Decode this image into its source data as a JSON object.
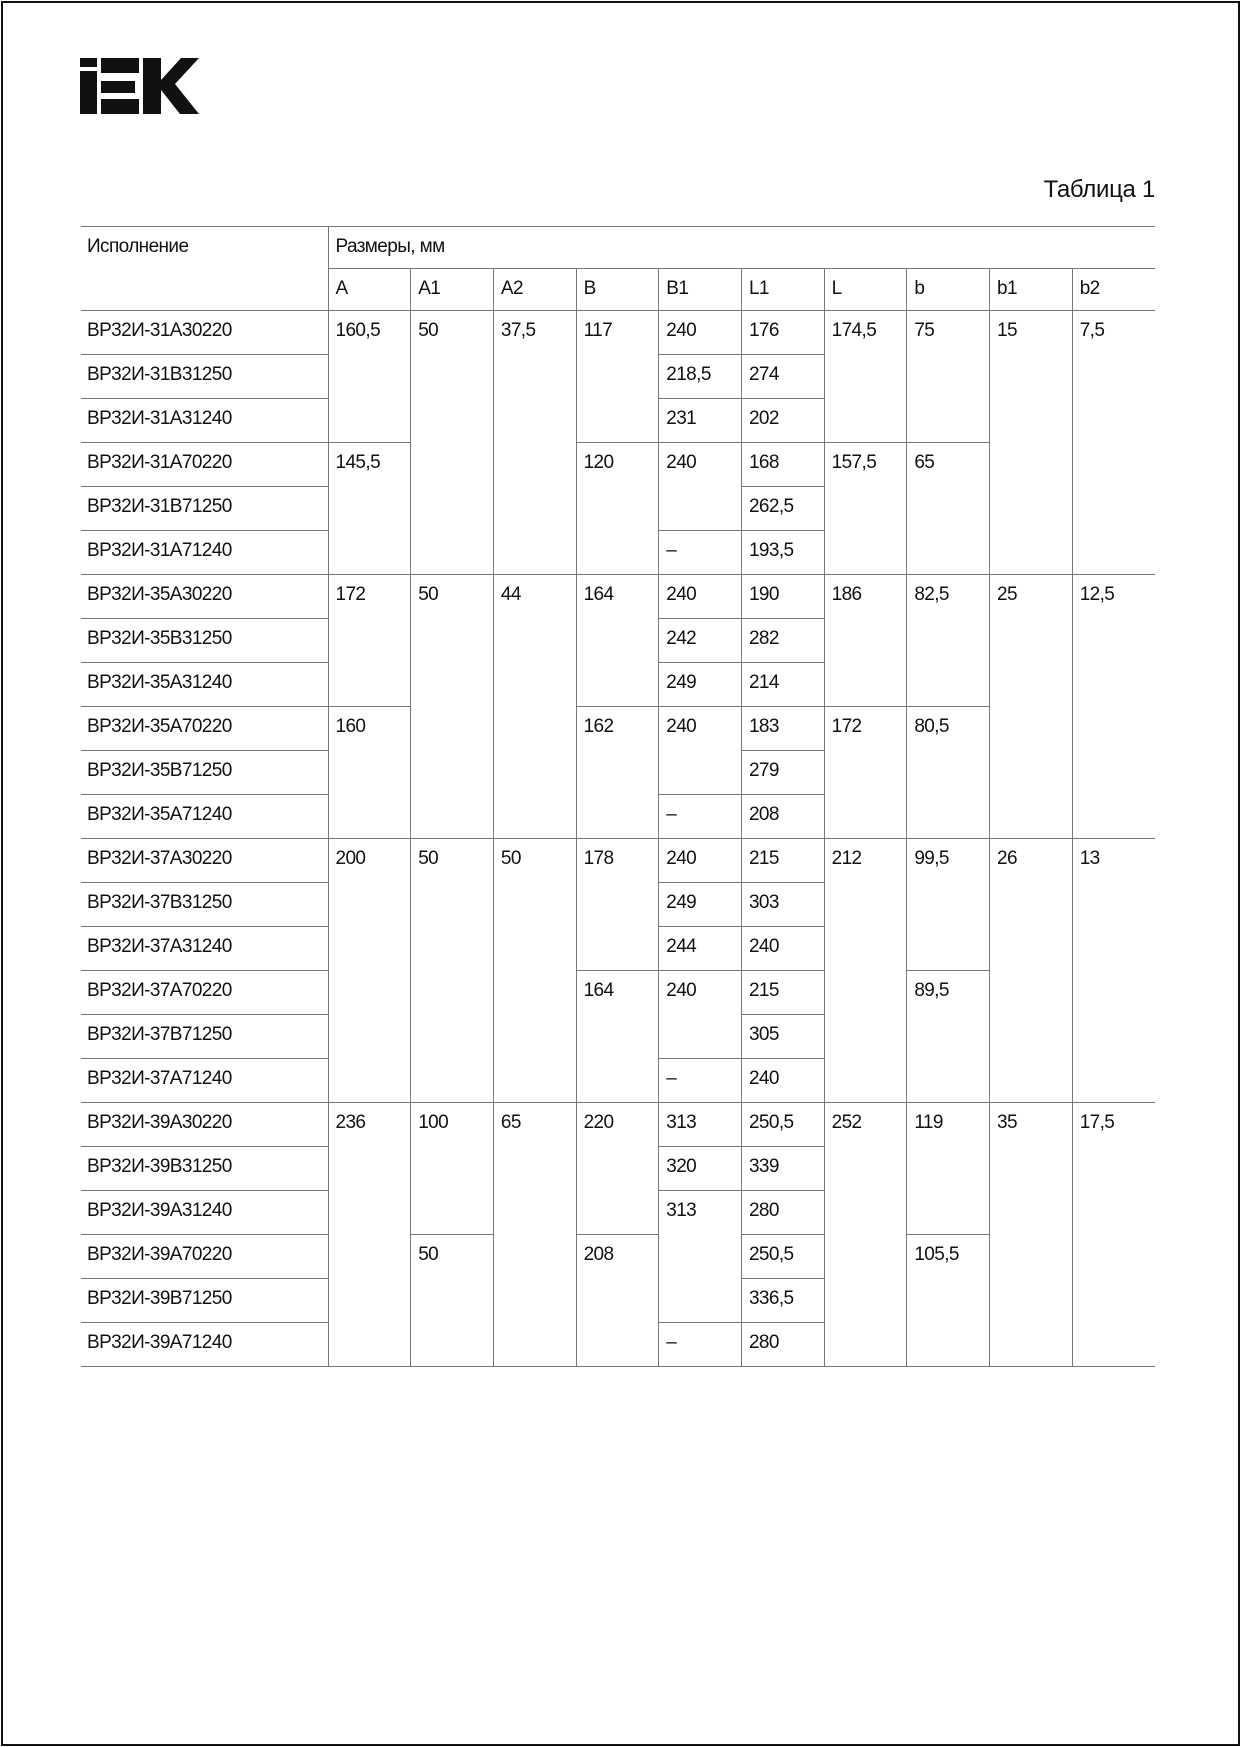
{
  "logo": {
    "text": "IEK"
  },
  "title": "Таблица 1",
  "table": {
    "header": {
      "execution": "Исполнение",
      "dimensions": "Размеры, мм",
      "columns": [
        "A",
        "A1",
        "A2",
        "B",
        "B1",
        "L1",
        "L",
        "b",
        "b1",
        "b2"
      ]
    },
    "rows": [
      {
        "designation": "ВР32И-31А30220",
        "cells": [
          [
            "160,5",
            3
          ],
          [
            "50",
            6
          ],
          [
            "37,5",
            6
          ],
          [
            "117",
            3
          ],
          [
            "240",
            1
          ],
          [
            "176",
            1
          ],
          [
            "174,5",
            3
          ],
          [
            "75",
            3
          ],
          [
            "15",
            6
          ],
          [
            "7,5",
            6
          ]
        ]
      },
      {
        "designation": "ВР32И-31В31250",
        "cells": [
          [
            "218,5",
            1
          ],
          [
            "274",
            1
          ]
        ]
      },
      {
        "designation": "ВР32И-31А31240",
        "cells": [
          [
            "231",
            1
          ],
          [
            "202",
            1
          ]
        ]
      },
      {
        "designation": "ВР32И-31А70220",
        "cells": [
          [
            "145,5",
            3
          ],
          [
            "120",
            3
          ],
          [
            "240",
            2
          ],
          [
            "168",
            1
          ],
          [
            "157,5",
            3
          ],
          [
            "65",
            3
          ]
        ]
      },
      {
        "designation": "ВР32И-31В71250",
        "cells": [
          [
            "262,5",
            1
          ]
        ]
      },
      {
        "designation": "ВР32И-31А71240",
        "cells": [
          [
            "–",
            1
          ],
          [
            "193,5",
            1
          ]
        ]
      },
      {
        "designation": "ВР32И-35А30220",
        "cells": [
          [
            "172",
            3
          ],
          [
            "50",
            6
          ],
          [
            "44",
            6
          ],
          [
            "164",
            3
          ],
          [
            "240",
            1
          ],
          [
            "190",
            1
          ],
          [
            "186",
            3
          ],
          [
            "82,5",
            3
          ],
          [
            "25",
            6
          ],
          [
            "12,5",
            6
          ]
        ]
      },
      {
        "designation": "ВР32И-35В31250",
        "cells": [
          [
            "242",
            1
          ],
          [
            "282",
            1
          ]
        ]
      },
      {
        "designation": "ВР32И-35А31240",
        "cells": [
          [
            "249",
            1
          ],
          [
            "214",
            1
          ]
        ]
      },
      {
        "designation": "ВР32И-35А70220",
        "cells": [
          [
            "160",
            3
          ],
          [
            "162",
            3
          ],
          [
            "240",
            2
          ],
          [
            "183",
            1
          ],
          [
            "172",
            3
          ],
          [
            "80,5",
            3
          ]
        ]
      },
      {
        "designation": "ВР32И-35В71250",
        "cells": [
          [
            "279",
            1
          ]
        ]
      },
      {
        "designation": "ВР32И-35А71240",
        "cells": [
          [
            "–",
            1
          ],
          [
            "208",
            1
          ]
        ]
      },
      {
        "designation": "ВР32И-37А30220",
        "cells": [
          [
            "200",
            6
          ],
          [
            "50",
            6
          ],
          [
            "50",
            6
          ],
          [
            "178",
            3
          ],
          [
            "240",
            1
          ],
          [
            "215",
            1
          ],
          [
            "212",
            6
          ],
          [
            "99,5",
            3
          ],
          [
            "26",
            6
          ],
          [
            "13",
            6
          ]
        ]
      },
      {
        "designation": "ВР32И-37В31250",
        "cells": [
          [
            "249",
            1
          ],
          [
            "303",
            1
          ]
        ]
      },
      {
        "designation": "ВР32И-37А31240",
        "cells": [
          [
            "244",
            1
          ],
          [
            "240",
            1
          ]
        ]
      },
      {
        "designation": "ВР32И-37А70220",
        "cells": [
          [
            "164",
            3
          ],
          [
            "240",
            2
          ],
          [
            "215",
            1
          ],
          [
            "89,5",
            3
          ]
        ]
      },
      {
        "designation": "ВР32И-37В71250",
        "cells": [
          [
            "305",
            1
          ]
        ]
      },
      {
        "designation": "ВР32И-37А71240",
        "cells": [
          [
            "–",
            1
          ],
          [
            "240",
            1
          ]
        ]
      },
      {
        "designation": "ВР32И-39А30220",
        "cells": [
          [
            "236",
            6
          ],
          [
            "100",
            3
          ],
          [
            "65",
            6
          ],
          [
            "220",
            3
          ],
          [
            "313",
            1
          ],
          [
            "250,5",
            1
          ],
          [
            "252",
            6
          ],
          [
            "119",
            3
          ],
          [
            "35",
            6
          ],
          [
            "17,5",
            6
          ]
        ]
      },
      {
        "designation": "ВР32И-39В31250",
        "cells": [
          [
            "320",
            1
          ],
          [
            "339",
            1
          ]
        ]
      },
      {
        "designation": "ВР32И-39А31240",
        "cells": [
          [
            "313",
            3
          ],
          [
            "280",
            1
          ]
        ]
      },
      {
        "designation": "ВР32И-39А70220",
        "cells": [
          [
            "50",
            3
          ],
          [
            "208",
            3
          ],
          [
            "250,5",
            1
          ],
          [
            "105,5",
            3
          ]
        ]
      },
      {
        "designation": "ВР32И-39В71250",
        "cells": [
          [
            "336,5",
            1
          ]
        ]
      },
      {
        "designation": "ВР32И-39А71240",
        "cells": [
          [
            "–",
            1
          ],
          [
            "280",
            1
          ]
        ]
      }
    ]
  }
}
